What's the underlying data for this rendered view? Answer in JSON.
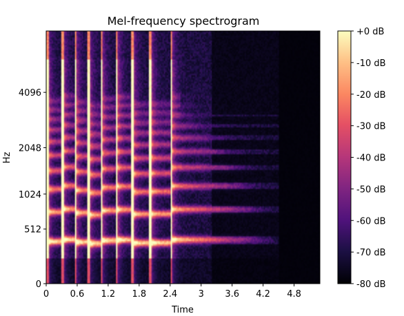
{
  "chart_data": {
    "type": "heatmap",
    "title": "Mel-frequency spectrogram",
    "xlabel": "Time",
    "ylabel": "Hz",
    "xlim": [
      0,
      5.3
    ],
    "x_ticks": [
      0,
      0.6,
      1.2,
      1.8,
      2.4,
      3,
      3.6,
      4.2,
      4.8
    ],
    "x_tick_labels": [
      "0",
      "0.6",
      "1.2",
      "1.8",
      "2.4",
      "3",
      "3.6",
      "4.2",
      "4.8"
    ],
    "y_scale": "mel",
    "y_ticks": [
      0,
      512,
      1024,
      2048,
      4096
    ],
    "y_tick_labels": [
      "0",
      "512",
      "1024",
      "2048",
      "4096"
    ],
    "colorbar": {
      "range": [
        -80,
        0
      ],
      "ticks": [
        0,
        -10,
        -20,
        -30,
        -40,
        -50,
        -60,
        -70,
        -80
      ],
      "tick_labels": [
        "+0 dB",
        "-10 dB",
        "-20 dB",
        "-30 dB",
        "-40 dB",
        "-50 dB",
        "-60 dB",
        "-70 dB",
        "-80 dB"
      ],
      "colormap": "magma"
    },
    "grid": false,
    "notes_onsets_s": [
      0,
      0.3,
      0.55,
      0.8,
      1.05,
      1.35,
      1.65,
      2.0,
      2.4
    ],
    "harmonic_bands_hz": [
      370,
      740,
      1110,
      1480,
      1850,
      2220,
      2590,
      2960,
      3330,
      3700
    ],
    "decay_end_s": 4.5
  }
}
